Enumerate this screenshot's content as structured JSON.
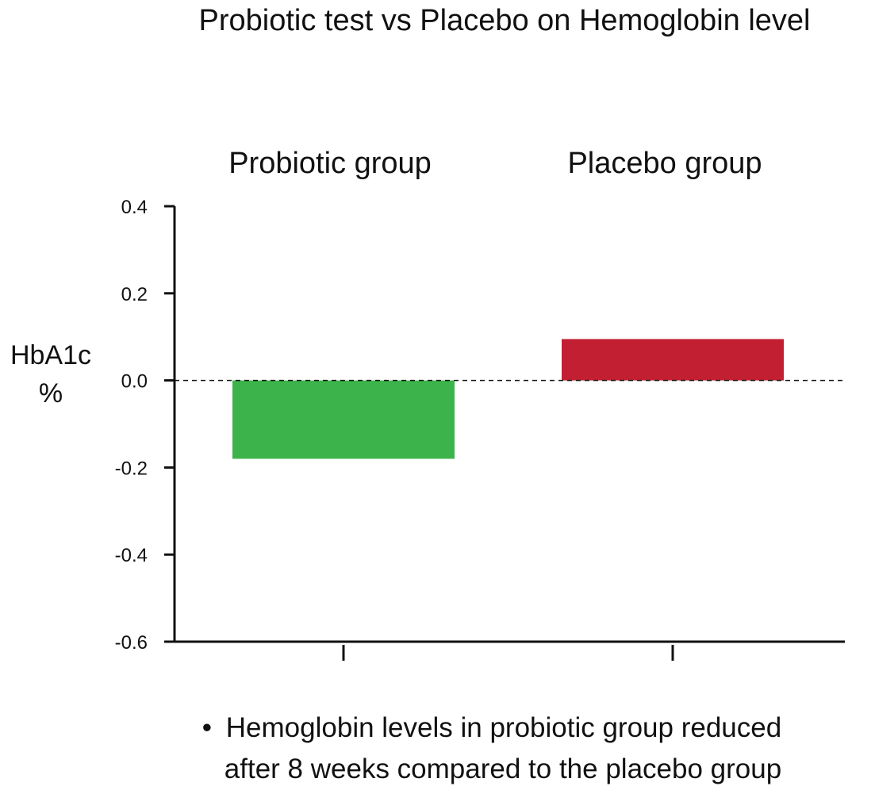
{
  "chart_data": {
    "type": "bar",
    "title": "Probiotic test vs Placebo on Hemoglobin level",
    "categories": [
      "Probiotic group",
      "Placebo group"
    ],
    "values": [
      -0.18,
      0.095
    ],
    "colors": [
      "#3cb44b",
      "#c22032"
    ],
    "ylabel_lines": [
      "HbA1c",
      "%"
    ],
    "xlabel": "",
    "ylim": [
      -0.6,
      0.4
    ],
    "yticks": [
      0.4,
      0.2,
      0.0,
      -0.2,
      -0.4,
      -0.6
    ],
    "ytick_labels": [
      "0.4",
      "0.2",
      "0.0",
      "-0.2",
      "-0.4",
      "-0.6"
    ],
    "reference_line": 0.0,
    "grid": false,
    "legend": "none"
  },
  "note": {
    "bullet": "•",
    "lines": [
      "Hemoglobin levels in probiotic group reduced",
      "after 8 weeks compared to the placebo group"
    ]
  }
}
